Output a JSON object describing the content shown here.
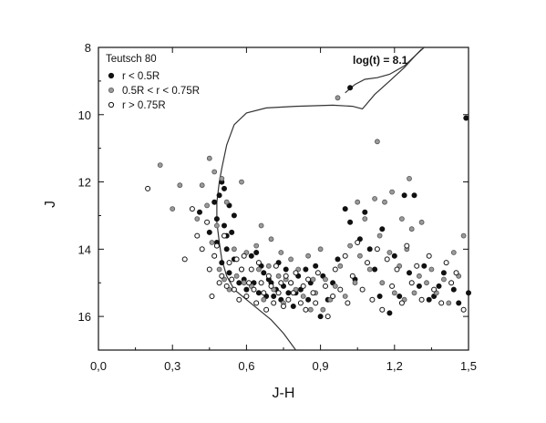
{
  "chart_data": {
    "type": "scatter",
    "title": "",
    "xlabel": "J-H",
    "ylabel": "J",
    "xlim": [
      0.0,
      1.5
    ],
    "ylim": [
      17.0,
      8.0
    ],
    "y_inverted": true,
    "x_ticks": [
      "0,0",
      "0,3",
      "0,6",
      "0,9",
      "1,2",
      "1,5"
    ],
    "x_tick_values": [
      0.0,
      0.3,
      0.6,
      0.9,
      1.2,
      1.5
    ],
    "y_ticks": [
      "8",
      "10",
      "12",
      "14",
      "16"
    ],
    "y_tick_values": [
      8,
      10,
      12,
      14,
      16
    ],
    "grid": false,
    "legend_position": "top-left",
    "legend_title": "Teutsch 80",
    "annotation": "log(t) = 8.1",
    "colors": {
      "axis": "#111111",
      "filled": "#111111",
      "gray": "#9a9a9a",
      "open_fill": "#ffffff",
      "isochrone": "#333333"
    },
    "series": [
      {
        "name": "r < 0.5R",
        "marker": "filled-black",
        "points": [
          [
            0.41,
            12.9
          ],
          [
            0.45,
            13.5
          ],
          [
            0.47,
            12.6
          ],
          [
            0.48,
            13.1
          ],
          [
            0.48,
            13.8
          ],
          [
            0.49,
            12.4
          ],
          [
            0.5,
            12.0
          ],
          [
            0.5,
            14.4
          ],
          [
            0.51,
            12.2
          ],
          [
            0.51,
            13.3
          ],
          [
            0.52,
            13.6
          ],
          [
            0.52,
            14.0
          ],
          [
            0.53,
            12.7
          ],
          [
            0.53,
            14.7
          ],
          [
            0.54,
            13.5
          ],
          [
            0.55,
            13.0
          ],
          [
            0.55,
            14.3
          ],
          [
            0.57,
            15.0
          ],
          [
            0.58,
            14.6
          ],
          [
            0.59,
            14.9
          ],
          [
            0.6,
            15.2
          ],
          [
            0.62,
            14.2
          ],
          [
            0.63,
            15.0
          ],
          [
            0.64,
            14.1
          ],
          [
            0.65,
            15.3
          ],
          [
            0.66,
            14.5
          ],
          [
            0.67,
            14.7
          ],
          [
            0.68,
            15.4
          ],
          [
            0.69,
            14.9
          ],
          [
            0.7,
            15.0
          ],
          [
            0.71,
            15.4
          ],
          [
            0.72,
            15.2
          ],
          [
            0.73,
            14.4
          ],
          [
            0.74,
            15.5
          ],
          [
            0.75,
            15.1
          ],
          [
            0.76,
            14.6
          ],
          [
            0.77,
            15.3
          ],
          [
            0.78,
            15.0
          ],
          [
            0.79,
            15.7
          ],
          [
            0.8,
            15.3
          ],
          [
            0.81,
            14.8
          ],
          [
            0.82,
            15.2
          ],
          [
            0.84,
            14.6
          ],
          [
            0.85,
            15.5
          ],
          [
            0.86,
            15.0
          ],
          [
            0.88,
            14.5
          ],
          [
            0.9,
            16.0
          ],
          [
            0.91,
            14.8
          ],
          [
            0.93,
            15.5
          ],
          [
            0.95,
            15.0
          ],
          [
            0.97,
            14.3
          ],
          [
            1.0,
            12.8
          ],
          [
            1.02,
            9.2
          ],
          [
            1.02,
            13.2
          ],
          [
            1.04,
            14.9
          ],
          [
            1.06,
            13.7
          ],
          [
            1.08,
            12.9
          ],
          [
            1.1,
            14.0
          ],
          [
            1.12,
            14.6
          ],
          [
            1.14,
            15.4
          ],
          [
            1.15,
            13.4
          ],
          [
            1.18,
            15.9
          ],
          [
            1.2,
            14.2
          ],
          [
            1.22,
            15.4
          ],
          [
            1.24,
            12.4
          ],
          [
            1.26,
            14.7
          ],
          [
            1.28,
            12.4
          ],
          [
            1.3,
            15.1
          ],
          [
            1.32,
            14.5
          ],
          [
            1.34,
            15.5
          ],
          [
            1.36,
            15.4
          ],
          [
            1.38,
            15.1
          ],
          [
            1.4,
            14.7
          ],
          [
            1.44,
            15.2
          ],
          [
            1.46,
            15.6
          ],
          [
            1.49,
            10.1
          ],
          [
            1.5,
            15.3
          ]
        ]
      },
      {
        "name": "0.5R < r < 0.75R",
        "marker": "gray",
        "points": [
          [
            0.25,
            11.5
          ],
          [
            0.3,
            12.8
          ],
          [
            0.33,
            12.1
          ],
          [
            0.4,
            13.1
          ],
          [
            0.42,
            12.1
          ],
          [
            0.44,
            12.7
          ],
          [
            0.45,
            11.3
          ],
          [
            0.46,
            13.8
          ],
          [
            0.47,
            11.7
          ],
          [
            0.47,
            14.2
          ],
          [
            0.48,
            13.3
          ],
          [
            0.49,
            14.6
          ],
          [
            0.5,
            11.9
          ],
          [
            0.51,
            14.9
          ],
          [
            0.52,
            12.6
          ],
          [
            0.53,
            15.2
          ],
          [
            0.55,
            14.0
          ],
          [
            0.56,
            14.8
          ],
          [
            0.58,
            12.0
          ],
          [
            0.59,
            15.0
          ],
          [
            0.6,
            14.1
          ],
          [
            0.62,
            15.1
          ],
          [
            0.64,
            13.9
          ],
          [
            0.65,
            14.6
          ],
          [
            0.66,
            13.3
          ],
          [
            0.67,
            15.5
          ],
          [
            0.69,
            14.5
          ],
          [
            0.7,
            13.7
          ],
          [
            0.71,
            15.2
          ],
          [
            0.73,
            14.8
          ],
          [
            0.74,
            14.1
          ],
          [
            0.75,
            15.6
          ],
          [
            0.76,
            14.9
          ],
          [
            0.78,
            14.3
          ],
          [
            0.8,
            15.2
          ],
          [
            0.81,
            14.6
          ],
          [
            0.83,
            15.4
          ],
          [
            0.85,
            14.2
          ],
          [
            0.86,
            15.8
          ],
          [
            0.87,
            14.9
          ],
          [
            0.88,
            15.3
          ],
          [
            0.9,
            14.0
          ],
          [
            0.91,
            15.8
          ],
          [
            0.92,
            14.9
          ],
          [
            0.94,
            15.5
          ],
          [
            0.96,
            15.1
          ],
          [
            0.97,
            9.5
          ],
          [
            0.98,
            14.5
          ],
          [
            1.0,
            15.4
          ],
          [
            1.02,
            13.9
          ],
          [
            1.04,
            15.0
          ],
          [
            1.05,
            12.6
          ],
          [
            1.06,
            14.2
          ],
          [
            1.08,
            13.1
          ],
          [
            1.1,
            14.6
          ],
          [
            1.12,
            12.5
          ],
          [
            1.13,
            10.8
          ],
          [
            1.14,
            13.6
          ],
          [
            1.15,
            15.0
          ],
          [
            1.16,
            12.6
          ],
          [
            1.18,
            14.1
          ],
          [
            1.19,
            12.3
          ],
          [
            1.2,
            15.3
          ],
          [
            1.22,
            14.5
          ],
          [
            1.23,
            13.1
          ],
          [
            1.24,
            15.5
          ],
          [
            1.25,
            14.0
          ],
          [
            1.26,
            11.9
          ],
          [
            1.27,
            13.4
          ],
          [
            1.28,
            15.3
          ],
          [
            1.3,
            14.8
          ],
          [
            1.31,
            13.2
          ],
          [
            1.33,
            15.0
          ],
          [
            1.35,
            14.6
          ],
          [
            1.37,
            15.3
          ],
          [
            1.4,
            14.9
          ],
          [
            1.42,
            15.6
          ],
          [
            1.44,
            14.1
          ],
          [
            1.46,
            14.8
          ],
          [
            1.48,
            13.6
          ]
        ]
      },
      {
        "name": "r > 0.75R",
        "marker": "open",
        "points": [
          [
            0.2,
            12.2
          ],
          [
            0.35,
            14.3
          ],
          [
            0.38,
            12.8
          ],
          [
            0.4,
            13.6
          ],
          [
            0.42,
            14.0
          ],
          [
            0.44,
            13.2
          ],
          [
            0.45,
            14.6
          ],
          [
            0.46,
            15.4
          ],
          [
            0.47,
            14.2
          ],
          [
            0.48,
            13.9
          ],
          [
            0.49,
            15.0
          ],
          [
            0.5,
            14.8
          ],
          [
            0.51,
            13.6
          ],
          [
            0.52,
            15.1
          ],
          [
            0.53,
            14.4
          ],
          [
            0.54,
            14.9
          ],
          [
            0.55,
            15.2
          ],
          [
            0.56,
            14.3
          ],
          [
            0.57,
            15.5
          ],
          [
            0.58,
            14.6
          ],
          [
            0.59,
            14.2
          ],
          [
            0.6,
            15.4
          ],
          [
            0.61,
            15.0
          ],
          [
            0.62,
            14.6
          ],
          [
            0.63,
            15.2
          ],
          [
            0.64,
            15.6
          ],
          [
            0.65,
            14.4
          ],
          [
            0.66,
            15.0
          ],
          [
            0.67,
            15.3
          ],
          [
            0.68,
            15.8
          ],
          [
            0.69,
            14.8
          ],
          [
            0.7,
            15.1
          ],
          [
            0.71,
            15.6
          ],
          [
            0.72,
            14.5
          ],
          [
            0.73,
            15.3
          ],
          [
            0.74,
            15.0
          ],
          [
            0.75,
            15.7
          ],
          [
            0.76,
            14.8
          ],
          [
            0.77,
            15.5
          ],
          [
            0.78,
            15.0
          ],
          [
            0.79,
            15.3
          ],
          [
            0.8,
            14.7
          ],
          [
            0.82,
            15.6
          ],
          [
            0.83,
            15.1
          ],
          [
            0.84,
            15.8
          ],
          [
            0.85,
            14.9
          ],
          [
            0.87,
            15.3
          ],
          [
            0.88,
            15.6
          ],
          [
            0.89,
            14.7
          ],
          [
            0.92,
            15.1
          ],
          [
            0.93,
            16.0
          ],
          [
            0.95,
            15.4
          ],
          [
            0.96,
            14.6
          ],
          [
            0.98,
            15.2
          ],
          [
            1.0,
            14.2
          ],
          [
            1.01,
            15.6
          ],
          [
            1.03,
            14.8
          ],
          [
            1.05,
            13.8
          ],
          [
            1.07,
            15.2
          ],
          [
            1.09,
            14.4
          ],
          [
            1.11,
            15.5
          ],
          [
            1.13,
            14.0
          ],
          [
            1.15,
            15.8
          ],
          [
            1.17,
            14.3
          ],
          [
            1.19,
            15.1
          ],
          [
            1.21,
            14.6
          ],
          [
            1.23,
            15.6
          ],
          [
            1.25,
            13.9
          ],
          [
            1.27,
            15.0
          ],
          [
            1.29,
            14.5
          ],
          [
            1.31,
            15.5
          ],
          [
            1.34,
            14.2
          ],
          [
            1.36,
            15.2
          ],
          [
            1.39,
            15.6
          ],
          [
            1.41,
            14.4
          ],
          [
            1.43,
            15.0
          ],
          [
            1.45,
            14.7
          ],
          [
            1.48,
            15.8
          ]
        ]
      }
    ],
    "isochrone": {
      "name": "log(t) = 8.1",
      "upper": [
        [
          0.49,
          12.0
        ],
        [
          0.5,
          11.6
        ],
        [
          0.52,
          10.9
        ],
        [
          0.55,
          10.3
        ],
        [
          0.6,
          9.95
        ],
        [
          0.68,
          9.8
        ],
        [
          0.8,
          9.75
        ],
        [
          0.95,
          9.72
        ],
        [
          1.03,
          9.75
        ],
        [
          1.07,
          9.83
        ],
        [
          1.12,
          9.4
        ],
        [
          1.18,
          9.0
        ],
        [
          1.24,
          8.6
        ],
        [
          1.29,
          8.2
        ],
        [
          1.32,
          8.0
        ]
      ],
      "loop": [
        [
          1.0,
          9.35
        ],
        [
          1.04,
          9.1
        ],
        [
          1.08,
          8.95
        ],
        [
          1.13,
          8.9
        ],
        [
          1.18,
          8.8
        ],
        [
          1.24,
          8.55
        ],
        [
          1.29,
          8.2
        ],
        [
          1.31,
          8.05
        ]
      ],
      "lower": [
        [
          0.49,
          12.0
        ],
        [
          0.48,
          12.6
        ],
        [
          0.48,
          13.2
        ],
        [
          0.49,
          13.8
        ],
        [
          0.5,
          14.3
        ],
        [
          0.52,
          14.8
        ],
        [
          0.55,
          15.2
        ],
        [
          0.6,
          15.5
        ],
        [
          0.65,
          15.8
        ],
        [
          0.7,
          16.1
        ],
        [
          0.75,
          16.5
        ],
        [
          0.8,
          17.0
        ]
      ]
    }
  }
}
